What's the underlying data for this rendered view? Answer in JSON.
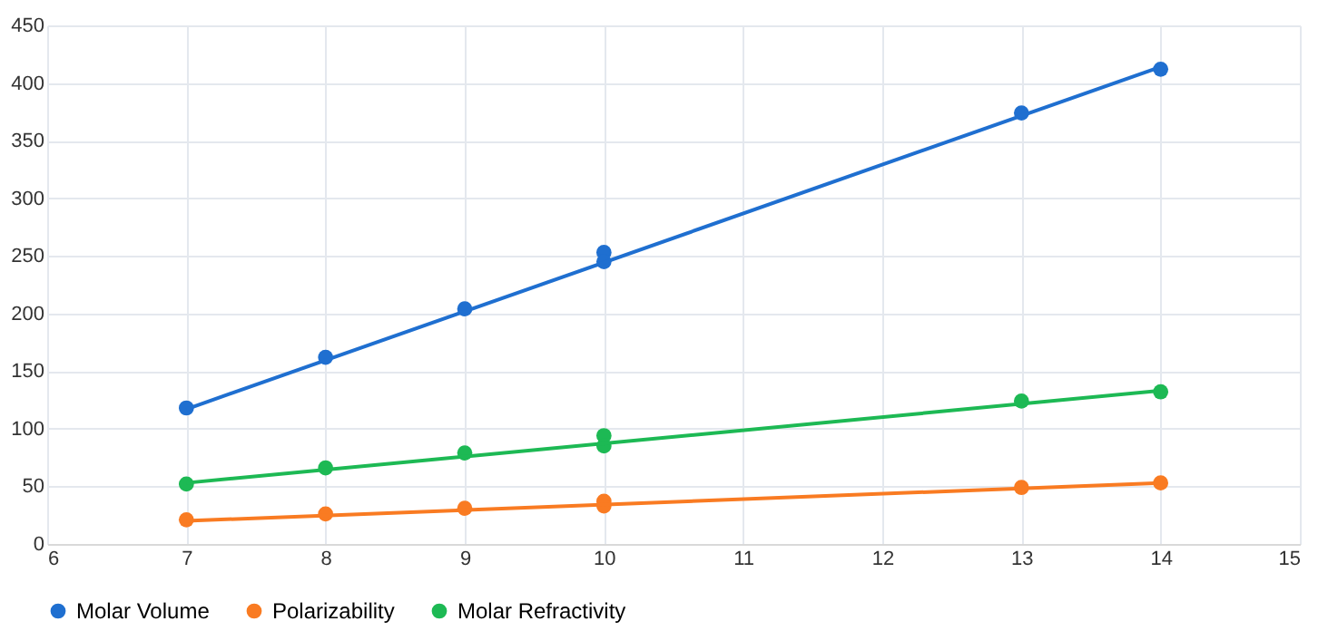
{
  "chart_data": {
    "type": "scatter",
    "xlim": [
      6,
      15
    ],
    "xticks": [
      6,
      7,
      8,
      9,
      10,
      11,
      12,
      13,
      14,
      15
    ],
    "ylim": [
      0,
      450
    ],
    "yticks": [
      0,
      50,
      100,
      150,
      200,
      250,
      300,
      350,
      400,
      450
    ],
    "grid": true,
    "legend": "bottom",
    "marker": "circle",
    "series": [
      {
        "name": "Molar Volume",
        "color": "#1f6fd0",
        "x": [
          7,
          8,
          9,
          10,
          10,
          13,
          14
        ],
        "values": [
          118,
          162,
          204,
          253,
          245,
          374,
          412
        ]
      },
      {
        "name": "Polarizability",
        "color": "#f97b22",
        "x": [
          7,
          8,
          9,
          10,
          10,
          13,
          14
        ],
        "values": [
          21,
          26,
          31,
          37,
          33,
          49,
          53
        ]
      },
      {
        "name": "Molar Refractivity",
        "color": "#1db954",
        "x": [
          7,
          8,
          9,
          10,
          10,
          13,
          14
        ],
        "values": [
          52,
          66,
          79,
          94,
          85,
          124,
          132
        ]
      },
      {
        "type": "line",
        "marker": "none",
        "line_style": "solid",
        "color": "#1f6fd0",
        "x": [
          7,
          14
        ],
        "values": [
          117,
          414
        ]
      },
      {
        "type": "line",
        "marker": "none",
        "line_style": "solid",
        "color": "#f97b22",
        "x": [
          7,
          14
        ],
        "values": [
          20,
          53
        ]
      },
      {
        "type": "line",
        "marker": "none",
        "line_style": "solid",
        "color": "#1db954",
        "x": [
          7,
          14
        ],
        "values": [
          53,
          133
        ]
      }
    ]
  }
}
